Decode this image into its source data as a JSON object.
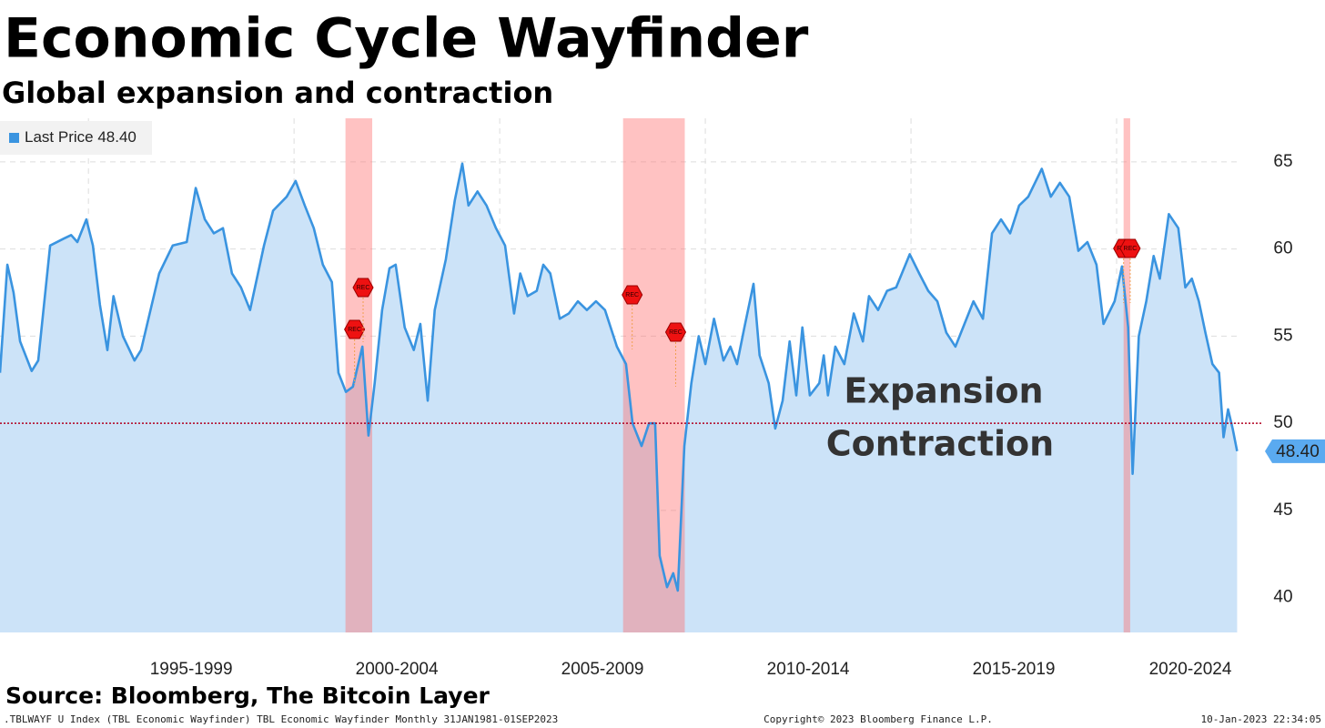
{
  "chart_data": {
    "type": "area",
    "title": "Economic Cycle Wayfinder",
    "subtitle": "Global expansion and contraction",
    "source": "Source: Bloomberg, The Bitcoin Layer",
    "footer_left": ".TBLWAYF U Index (TBL Economic Wayfinder) TBL Economic Wayfinder  Monthly 31JAN1981-01SEP2023",
    "footer_center": "Copyright© 2023 Bloomberg Finance L.P.",
    "footer_right": "10-Jan-2023 22:34:05",
    "annotations": [
      "Expansion",
      "Contraction"
    ],
    "threshold": 50,
    "recession_label": "REC",
    "recessions": [
      [
        2001.25,
        2001.9
      ],
      [
        2008.0,
        2009.5
      ],
      [
        2020.17,
        2020.33
      ]
    ],
    "last_value_label": "48.40",
    "xlim": [
      1992.85,
      2023.0
    ],
    "ylim": [
      38,
      67.5
    ],
    "yticks": [
      40,
      45,
      50,
      55,
      60,
      65
    ],
    "xticks": [
      {
        "value": 1997.5,
        "label": "1995-1999"
      },
      {
        "value": 2002.5,
        "label": "2000-2004"
      },
      {
        "value": 2007.5,
        "label": "2005-2009"
      },
      {
        "value": 2012.5,
        "label": "2010-2014"
      },
      {
        "value": 2017.5,
        "label": "2015-2019"
      },
      {
        "value": 2022.0,
        "label": "2020-2024"
      }
    ],
    "xgrid": [
      1995,
      2000,
      2005,
      2010,
      2015,
      2020
    ],
    "grid": true,
    "x": [
      1992.85,
      1993.03,
      1993.18,
      1993.34,
      1993.62,
      1993.78,
      1994.07,
      1994.4,
      1994.58,
      1994.73,
      1994.95,
      1995.11,
      1995.28,
      1995.46,
      1995.61,
      1995.84,
      1996.12,
      1996.28,
      1996.72,
      1997.05,
      1997.39,
      1997.61,
      1997.83,
      1998.05,
      1998.27,
      1998.49,
      1998.71,
      1998.93,
      1999.27,
      1999.49,
      1999.82,
      2000.04,
      2000.26,
      2000.48,
      2000.7,
      2000.92,
      2001.08,
      2001.26,
      2001.43,
      2001.66,
      2001.81,
      2001.96,
      2002.14,
      2002.32,
      2002.47,
      2002.69,
      2002.91,
      2003.07,
      2003.25,
      2003.42,
      2003.69,
      2003.91,
      2004.09,
      2004.24,
      2004.46,
      2004.68,
      2004.91,
      2005.13,
      2005.35,
      2005.5,
      2005.68,
      2005.9,
      2006.06,
      2006.23,
      2006.46,
      2006.68,
      2006.9,
      2007.12,
      2007.34,
      2007.56,
      2007.85,
      2008.07,
      2008.23,
      2008.45,
      2008.63,
      2008.78,
      2008.89,
      2009.07,
      2009.22,
      2009.33,
      2009.49,
      2009.66,
      2009.84,
      2010.0,
      2010.21,
      2010.44,
      2010.61,
      2010.77,
      2010.95,
      2011.17,
      2011.32,
      2011.54,
      2011.7,
      2011.88,
      2012.05,
      2012.21,
      2012.36,
      2012.54,
      2012.77,
      2012.88,
      2012.98,
      2013.16,
      2013.38,
      2013.61,
      2013.83,
      2013.98,
      2014.2,
      2014.42,
      2014.64,
      2014.97,
      2015.2,
      2015.42,
      2015.64,
      2015.86,
      2016.08,
      2016.3,
      2016.52,
      2016.75,
      2016.97,
      2017.19,
      2017.41,
      2017.63,
      2017.85,
      2018.18,
      2018.4,
      2018.62,
      2018.85,
      2019.07,
      2019.29,
      2019.51,
      2019.68,
      2019.95,
      2020.13,
      2020.28,
      2020.39,
      2020.54,
      2020.72,
      2020.9,
      2021.05,
      2021.27,
      2021.5,
      2021.67,
      2021.83,
      2022.0,
      2022.16,
      2022.33,
      2022.49,
      2022.6,
      2022.71,
      2022.82,
      2022.93
    ],
    "series": [
      {
        "name": "Last Price",
        "color": "#3a94e0",
        "fill": "#cce3f8",
        "values": [
          52.9,
          59.1,
          57.5,
          54.7,
          53.0,
          53.6,
          60.2,
          60.6,
          60.8,
          60.4,
          61.7,
          60.2,
          56.8,
          54.2,
          57.3,
          55.0,
          53.6,
          54.2,
          58.6,
          60.2,
          60.4,
          63.5,
          61.7,
          60.9,
          61.2,
          58.6,
          57.8,
          56.5,
          60.2,
          62.2,
          63.0,
          63.9,
          62.5,
          61.2,
          59.1,
          58.1,
          52.9,
          51.8,
          52.1,
          54.4,
          49.3,
          52.3,
          56.5,
          58.9,
          59.1,
          55.5,
          54.2,
          55.7,
          51.3,
          56.5,
          59.4,
          62.8,
          64.9,
          62.5,
          63.3,
          62.5,
          61.2,
          60.2,
          56.3,
          58.6,
          57.3,
          57.6,
          59.1,
          58.6,
          56.0,
          56.3,
          57.0,
          56.5,
          57.0,
          56.5,
          54.4,
          53.4,
          50.0,
          48.7,
          50.0,
          50.0,
          42.4,
          40.6,
          41.4,
          40.4,
          48.7,
          52.3,
          55.0,
          53.4,
          56.0,
          53.6,
          54.4,
          53.4,
          55.5,
          58.0,
          53.9,
          52.3,
          49.7,
          51.3,
          54.7,
          51.6,
          55.5,
          51.6,
          52.3,
          53.9,
          51.6,
          54.4,
          53.4,
          56.3,
          54.7,
          57.3,
          56.5,
          57.6,
          57.8,
          59.7,
          58.6,
          57.6,
          57.0,
          55.2,
          54.4,
          55.7,
          57.0,
          56.0,
          60.9,
          61.7,
          60.9,
          62.5,
          63.0,
          64.6,
          63.0,
          63.8,
          63.0,
          59.9,
          60.4,
          59.1,
          55.7,
          57.0,
          59.0,
          55.5,
          47.1,
          55.0,
          57.0,
          59.6,
          58.3,
          62.0,
          61.2,
          57.8,
          58.3,
          57.0,
          55.2,
          53.4,
          52.9,
          49.2,
          50.8,
          49.7,
          48.4
        ]
      }
    ]
  }
}
